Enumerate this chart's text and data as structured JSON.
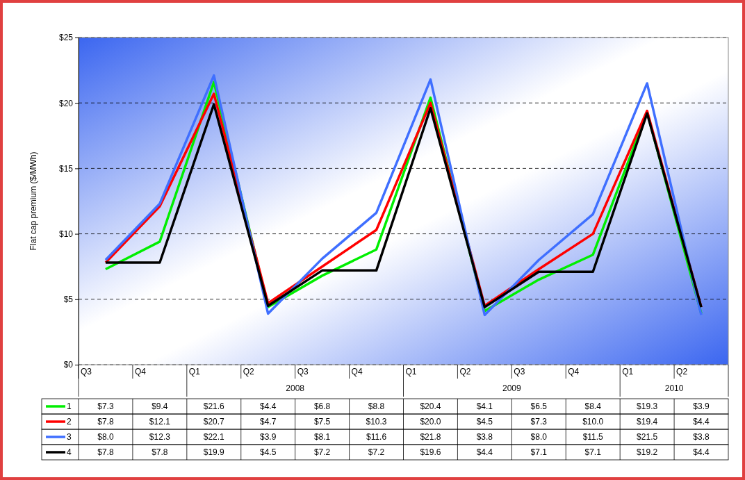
{
  "chart_data": {
    "type": "line",
    "ylabel": "Flat cap premium ($/MWh)",
    "categories": [
      "Q3",
      "Q4",
      "Q1",
      "Q2",
      "Q3",
      "Q4",
      "Q1",
      "Q2",
      "Q3",
      "Q4",
      "Q1",
      "Q2"
    ],
    "annotations": [
      "2008",
      "2009",
      "2010"
    ],
    "series": [
      {
        "name": "1",
        "color": "#00ee00",
        "values": [
          7.3,
          9.4,
          21.6,
          4.4,
          6.8,
          8.8,
          20.4,
          4.1,
          6.5,
          8.4,
          19.3,
          3.9
        ],
        "value_labels": [
          "$7.3",
          "$9.4",
          "$21.6",
          "$4.4",
          "$6.8",
          "$8.8",
          "$20.4",
          "$4.1",
          "$6.5",
          "$8.4",
          "$19.3",
          "$3.9"
        ]
      },
      {
        "name": "2",
        "color": "#ff0000",
        "values": [
          7.8,
          12.1,
          20.7,
          4.7,
          7.5,
          10.3,
          20.0,
          4.5,
          7.3,
          10.0,
          19.4,
          4.4
        ],
        "value_labels": [
          "$7.8",
          "$12.1",
          "$20.7",
          "$4.7",
          "$7.5",
          "$10.3",
          "$20.0",
          "$4.5",
          "$7.3",
          "$10.0",
          "$19.4",
          "$4.4"
        ]
      },
      {
        "name": "3",
        "color": "#3f6fff",
        "values": [
          8.0,
          12.3,
          22.1,
          3.9,
          8.1,
          11.6,
          21.8,
          3.8,
          8.0,
          11.5,
          21.5,
          3.8
        ],
        "value_labels": [
          "$8.0",
          "$12.3",
          "$22.1",
          "$3.9",
          "$8.1",
          "$11.6",
          "$21.8",
          "$3.8",
          "$8.0",
          "$11.5",
          "$21.5",
          "$3.8"
        ]
      },
      {
        "name": "4",
        "color": "#000000",
        "values": [
          7.8,
          7.8,
          19.9,
          4.5,
          7.2,
          7.2,
          19.6,
          4.4,
          7.1,
          7.1,
          19.2,
          4.4
        ],
        "value_labels": [
          "$7.8",
          "$7.8",
          "$19.9",
          "$4.5",
          "$7.2",
          "$7.2",
          "$19.6",
          "$4.4",
          "$7.1",
          "$7.1",
          "$19.2",
          "$4.4"
        ]
      }
    ],
    "ylim": [
      0,
      25
    ],
    "yticks": [
      {
        "value": 0,
        "label": "$0"
      },
      {
        "value": 5,
        "label": "$5"
      },
      {
        "value": 10,
        "label": "$10"
      },
      {
        "value": 15,
        "label": "$15"
      },
      {
        "value": 20,
        "label": "$20"
      },
      {
        "value": 25,
        "label": "$25"
      }
    ],
    "grid": "y",
    "legend": "bottom",
    "marker": "none",
    "line_style": "solid"
  }
}
